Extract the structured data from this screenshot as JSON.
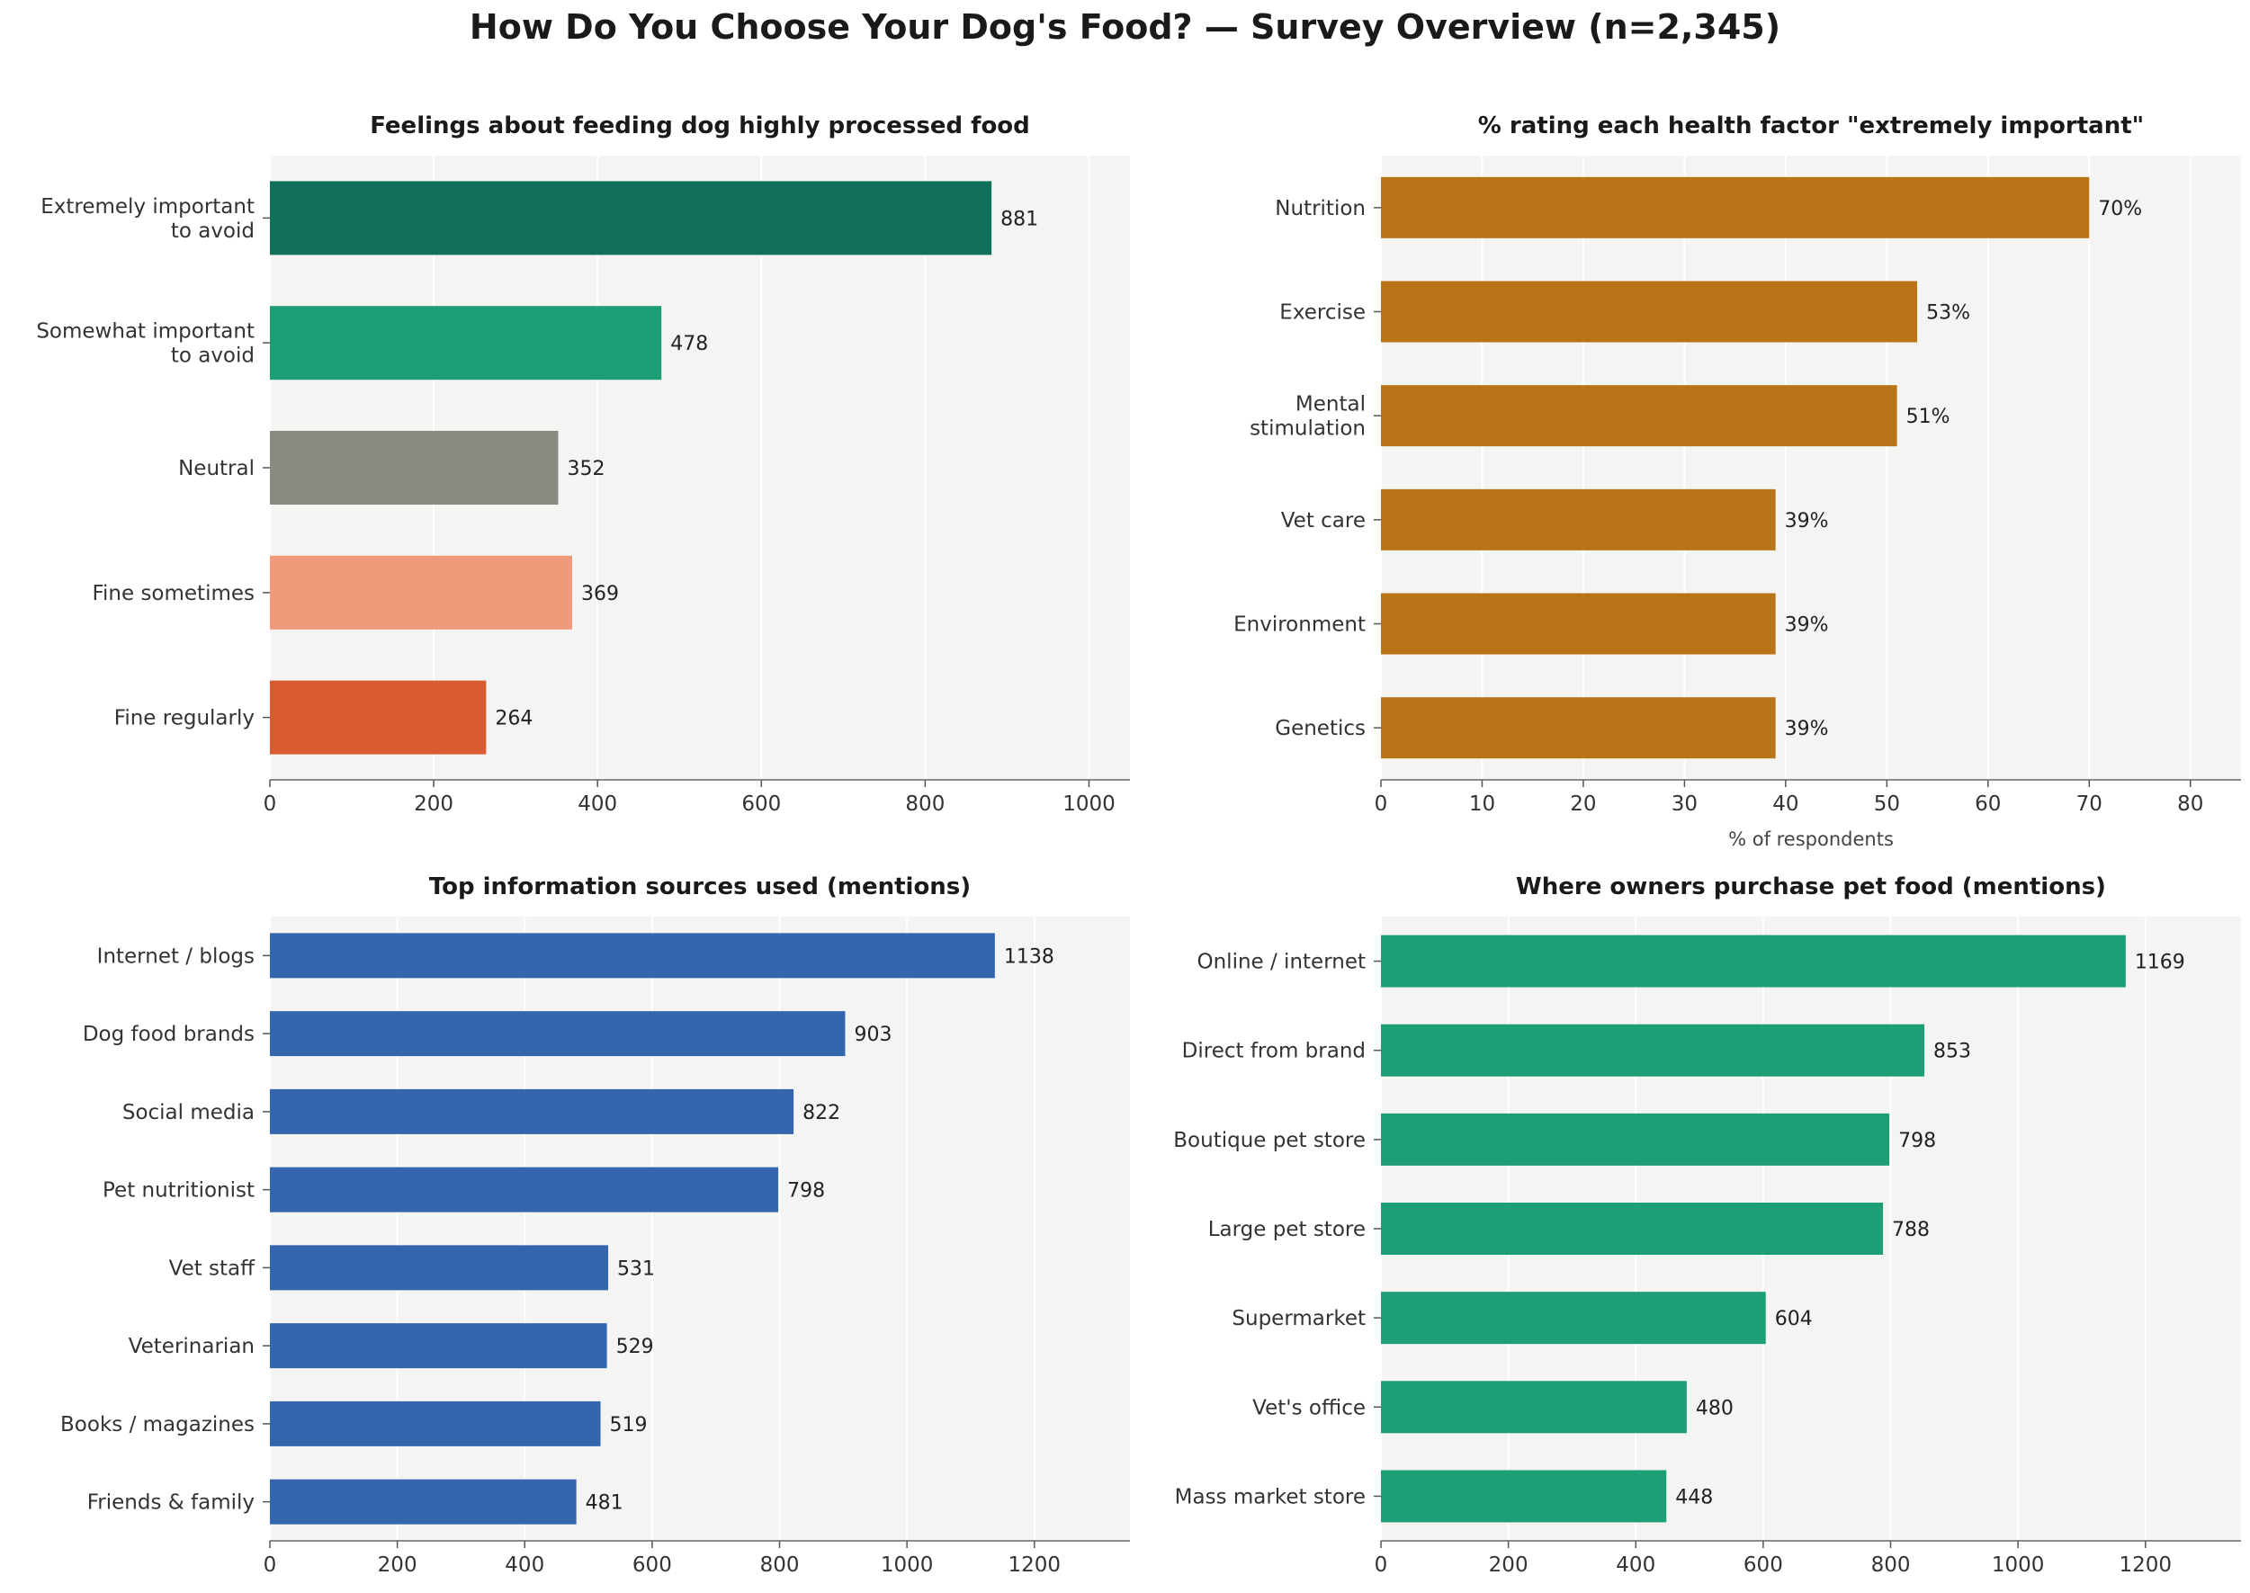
{
  "title": "How Do You Choose Your Dog's Food? — Survey Overview (n=2,345)",
  "chart_data": [
    {
      "type": "bar",
      "orientation": "horizontal",
      "title": "Feelings about feeding dog highly processed food",
      "categories": [
        [
          "Extremely important",
          "to avoid"
        ],
        [
          "Somewhat important",
          "to avoid"
        ],
        [
          "Neutral"
        ],
        [
          "Fine sometimes"
        ],
        [
          "Fine regularly"
        ]
      ],
      "values": [
        881,
        478,
        352,
        369,
        264
      ],
      "value_labels": [
        "881",
        "478",
        "352",
        "369",
        "264"
      ],
      "colors": [
        "#117059",
        "#1e9e77",
        "#8a8a80",
        "#f0997b",
        "#d85b31"
      ],
      "xlim": [
        0,
        1050
      ],
      "xticks": [
        0,
        200,
        400,
        600,
        800,
        1000
      ],
      "xlabel": "",
      "grid": "vertical"
    },
    {
      "type": "bar",
      "orientation": "horizontal",
      "title": "% rating each health factor \"extremely important\"",
      "categories": [
        [
          "Nutrition"
        ],
        [
          "Exercise"
        ],
        [
          "Mental",
          "stimulation"
        ],
        [
          "Vet care"
        ],
        [
          "Environment"
        ],
        [
          "Genetics"
        ]
      ],
      "values": [
        70,
        53,
        51,
        39,
        39,
        39
      ],
      "value_labels": [
        "70%",
        "53%",
        "51%",
        "39%",
        "39%",
        "39%"
      ],
      "colors": [
        "#b87416"
      ],
      "xlim": [
        0,
        85
      ],
      "xticks": [
        0,
        10,
        20,
        30,
        40,
        50,
        60,
        70,
        80
      ],
      "xlabel": "% of respondents",
      "grid": "vertical"
    },
    {
      "type": "bar",
      "orientation": "horizontal",
      "title": "Top information sources used (mentions)",
      "categories": [
        [
          "Internet / blogs"
        ],
        [
          "Dog food brands"
        ],
        [
          "Social media"
        ],
        [
          "Pet nutritionist"
        ],
        [
          "Vet staff"
        ],
        [
          "Veterinarian"
        ],
        [
          "Books / magazines"
        ],
        [
          "Friends & family"
        ]
      ],
      "values": [
        1138,
        903,
        822,
        798,
        531,
        529,
        519,
        481
      ],
      "value_labels": [
        "1138",
        "903",
        "822",
        "798",
        "531",
        "529",
        "519",
        "481"
      ],
      "colors": [
        "#3366ad"
      ],
      "xlim": [
        0,
        1350
      ],
      "xticks": [
        0,
        200,
        400,
        600,
        800,
        1000,
        1200
      ],
      "xlabel": "",
      "grid": "vertical"
    },
    {
      "type": "bar",
      "orientation": "horizontal",
      "title": "Where owners purchase pet food (mentions)",
      "categories": [
        [
          "Online / internet"
        ],
        [
          "Direct from brand"
        ],
        [
          "Boutique pet store"
        ],
        [
          "Large pet store"
        ],
        [
          "Supermarket"
        ],
        [
          "Vet's office"
        ],
        [
          "Mass market store"
        ]
      ],
      "values": [
        1169,
        853,
        798,
        788,
        604,
        480,
        448
      ],
      "value_labels": [
        "1169",
        "853",
        "798",
        "788",
        "604",
        "480",
        "448"
      ],
      "colors": [
        "#1e9e77"
      ],
      "xlim": [
        0,
        1350
      ],
      "xticks": [
        0,
        200,
        400,
        600,
        800,
        1000,
        1200
      ],
      "xlabel": "",
      "grid": "vertical"
    }
  ]
}
